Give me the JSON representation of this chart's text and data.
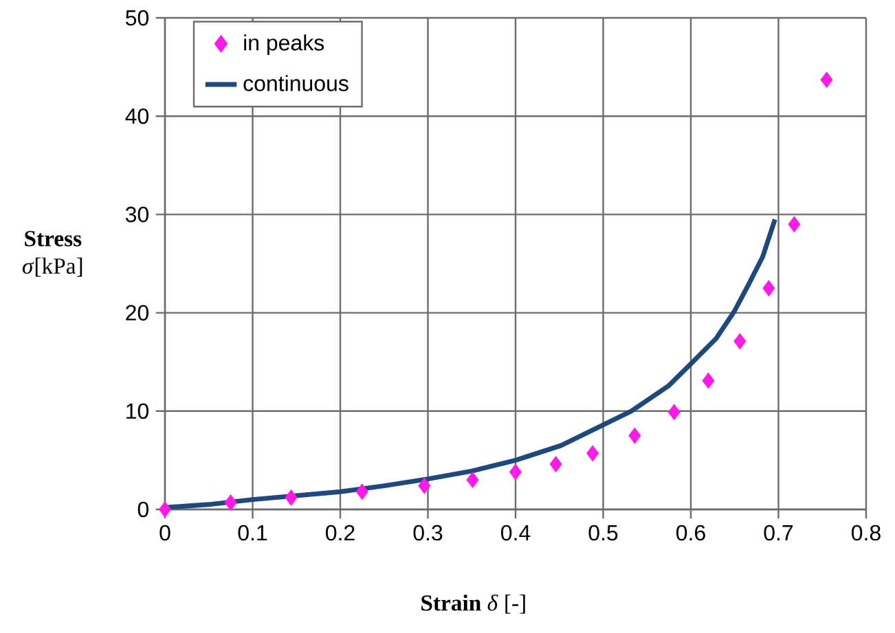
{
  "chart_data": {
    "type": "scatter",
    "xlabel": "**Strain** *δ* [-]",
    "ylabel": "**Stress** *σ*[kPa]",
    "xlim": [
      0,
      0.8
    ],
    "xticks": [
      0,
      0.1,
      0.2,
      0.3,
      0.4,
      0.5,
      0.6,
      0.7,
      0.8
    ],
    "ylim": [
      0,
      50
    ],
    "yticks": [
      0,
      10,
      20,
      30,
      40,
      50
    ],
    "grid": true,
    "legend": "top left",
    "series": [
      {
        "name": "in peaks",
        "marker": "diamond",
        "color": "#ff1ae8",
        "x": [
          0,
          0.075,
          0.144,
          0.225,
          0.296,
          0.351,
          0.4,
          0.446,
          0.488,
          0.536,
          0.581,
          0.62,
          0.656,
          0.689,
          0.718,
          0.755
        ],
        "values": [
          0,
          0.7,
          1.2,
          1.8,
          2.4,
          3.0,
          3.8,
          4.6,
          5.7,
          7.5,
          9.9,
          13.1,
          17.1,
          22.5,
          29.0,
          43.7
        ]
      },
      {
        "name": "continuous",
        "type": "line",
        "line_style": "solid",
        "color": "#1f497d",
        "x": [
          0,
          0.05,
          0.1,
          0.15,
          0.2,
          0.25,
          0.3,
          0.35,
          0.4,
          0.452,
          0.5,
          0.532,
          0.575,
          0.6,
          0.629,
          0.65,
          0.666,
          0.682,
          0.696
        ],
        "values": [
          0.2,
          0.5,
          1.0,
          1.4,
          1.8,
          2.4,
          3.1,
          3.9,
          5.0,
          6.5,
          8.6,
          10,
          12.6,
          14.8,
          17.4,
          20.2,
          22.9,
          25.7,
          29.5
        ]
      }
    ]
  }
}
